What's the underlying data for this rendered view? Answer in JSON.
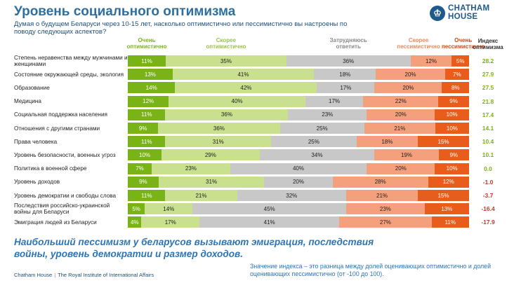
{
  "title": "Уровень социального оптимизма",
  "subtitle": "Думая о будущем Беларуси через 10-15 лет, насколько оптимистично или пессимистично вы настроены по поводу следующих аспектов?",
  "logo": {
    "line1": "CHATHAM",
    "line2": "HOUSE",
    "mark": "♔"
  },
  "colors": [
    "#7ab317",
    "#c9e08f",
    "#c8c8c8",
    "#f5a07c",
    "#e95d1c"
  ],
  "index_header": "Индекс оптимизма",
  "conclusion": "Наибольший пессимизм у беларусов вызывают эмиграция, последствия войны, уровень демократии и размер доходов.",
  "footer": {
    "org": "Chatham House",
    "separator": "|",
    "institute": "The Royal Institute of International Affairs",
    "note": "Значение индекса – это разница между долей оценивающих оптимистично и долей оценивающих пессимистично (от -100 до 100)."
  },
  "chart_data": {
    "type": "bar",
    "stacked": true,
    "orientation": "horizontal",
    "series_names": [
      "Очень оптимистично",
      "Скорее оптимистично",
      "Затрудняюсь ответить",
      "Скорее пессимистично",
      "Очень пессимистично"
    ],
    "categories": [
      "Степень неравенства между мужчинами и женщинами",
      "Состояние окружающей среды, экология",
      "Образование",
      "Медицина",
      "Социальная поддержка населения",
      "Отношения с другими странами",
      "Права человека",
      "Уровень безопасности, военных угроз",
      "Политика в военной сфере",
      "Уровень доходов",
      "Уровень демократии и свободы слова",
      "Последствия российско-украинской войны для Беларуси",
      "Эмиграция людей из Беларуси"
    ],
    "values": [
      [
        11,
        35,
        36,
        12,
        5
      ],
      [
        13,
        41,
        18,
        20,
        7
      ],
      [
        14,
        42,
        17,
        20,
        8
      ],
      [
        12,
        40,
        17,
        22,
        9
      ],
      [
        11,
        36,
        23,
        20,
        10
      ],
      [
        9,
        36,
        25,
        21,
        10
      ],
      [
        11,
        31,
        25,
        18,
        15
      ],
      [
        10,
        29,
        34,
        19,
        9
      ],
      [
        7,
        23,
        40,
        20,
        10
      ],
      [
        9,
        31,
        20,
        28,
        12
      ],
      [
        11,
        21,
        32,
        21,
        15
      ],
      [
        5,
        14,
        45,
        23,
        13
      ],
      [
        4,
        17,
        41,
        27,
        11
      ]
    ],
    "index": [
      "28.2",
      "27.9",
      "27.5",
      "21.8",
      "17.4",
      "14.1",
      "10.4",
      "10.1",
      "0.0",
      "-1.0",
      "-3.7",
      "-16.4",
      "-17.9"
    ]
  }
}
